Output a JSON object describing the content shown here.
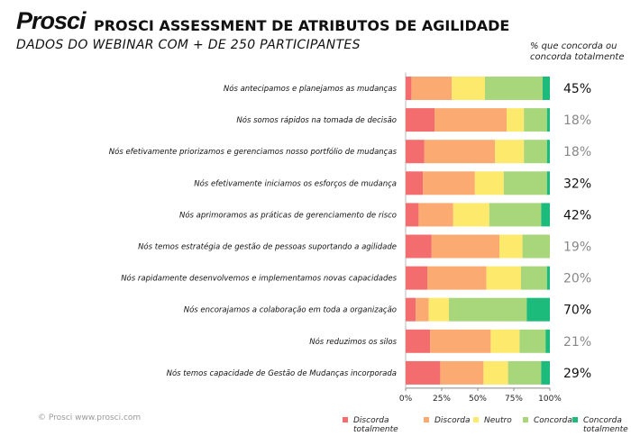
{
  "chart_data": {
    "type": "stacked-barh",
    "logo": "Prosci",
    "title": "PROSCI ASSESSMENT DE ATRIBUTOS DE AGILIDADE",
    "subtitle": "DADOS DO WEBINAR COM + DE 250 PARTICIPANTES",
    "value_header": "% que concorda ou concorda totalmente",
    "source": "© Prosci www.prosci.com",
    "categories": [
      "Nós antecipamos e planejamos as mudanças",
      "Nós somos rápidos na tomada de decisão",
      "Nós efetivamente priorizamos e gerenciamos nosso portfólio de mudanças",
      "Nós efetivamente iniciamos os esforços de mudança",
      "Nós aprimoramos as práticas de gerenciamento de risco",
      "Nós temos estratégia de gestão de pessoas suportando a agilidade",
      "Nós rapidamente desenvolvemos e implementamos novas capacidades",
      "Nós encorajamos a colaboração em toda a organização",
      "Nós reduzimos os silos",
      "Nós temos capacidade de Gestão de Mudanças incorporada"
    ],
    "series": [
      {
        "name": "Discorda totalmente",
        "color": "#f36c6e",
        "values": [
          4,
          20,
          13,
          12,
          9,
          18,
          15,
          7,
          17,
          24
        ]
      },
      {
        "name": "Discorda",
        "color": "#fbab72",
        "values": [
          28,
          50,
          49,
          36,
          24,
          47,
          41,
          9,
          42,
          30
        ]
      },
      {
        "name": "Neutro",
        "color": "#fde96b",
        "values": [
          23,
          12,
          20,
          20,
          25,
          16,
          24,
          14,
          20,
          17
        ]
      },
      {
        "name": "Concorda",
        "color": "#a7d67b",
        "values": [
          40,
          16,
          16,
          30,
          36,
          19,
          18,
          54,
          18,
          23
        ]
      },
      {
        "name": "Concorda totalmente",
        "color": "#1dbb7b",
        "values": [
          5,
          2,
          2,
          2,
          6,
          0,
          2,
          16,
          3,
          6
        ]
      }
    ],
    "agree_labels": [
      "45%",
      "18%",
      "18%",
      "32%",
      "42%",
      "19%",
      "20%",
      "70%",
      "21%",
      "29%"
    ],
    "xlim": [
      0,
      100
    ],
    "xticks": [
      {
        "value": 0,
        "label": "0%"
      },
      {
        "value": 25,
        "label": "25%"
      },
      {
        "value": 50,
        "label": "50%"
      },
      {
        "value": 75,
        "label": "75%"
      },
      {
        "value": 100,
        "label": "100%"
      }
    ]
  }
}
